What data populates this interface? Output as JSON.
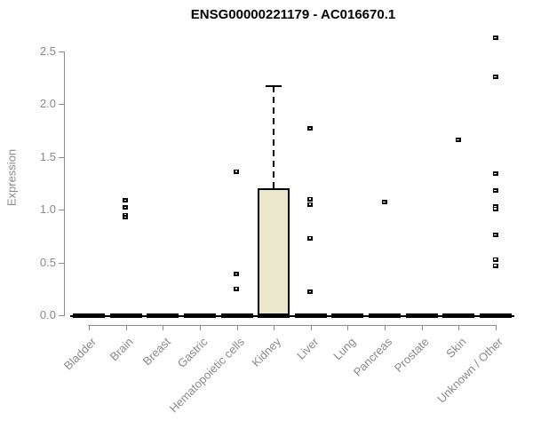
{
  "chart_data": {
    "type": "boxplot",
    "title": "ENSG00000221179 - AC016670.1",
    "xlabel": "",
    "ylabel": "Expression",
    "ylim": [
      0,
      2.5
    ],
    "yticks": [
      "0.0",
      "0.5",
      "1.0",
      "1.5",
      "2.0",
      "2.5"
    ],
    "grid": false,
    "legend": "none",
    "colors": {
      "box_fill": "#ece8cd",
      "box_border": "#000000",
      "axis": "#8c8c8c",
      "tick_text": "#8a8a8a",
      "title_text": "#000000",
      "outlier": "#000000"
    },
    "categories": [
      "Bladder",
      "Brain",
      "Breast",
      "Gastric",
      "Hematopoietic cells",
      "Kidney",
      "Liver",
      "Lung",
      "Pancreas",
      "Prostate",
      "Skin",
      "Unknown / Other"
    ],
    "groups": [
      {
        "label": "Bladder",
        "q1": 0,
        "median": 0,
        "q3": 0,
        "whisker_low": 0,
        "whisker_high": 0,
        "outliers": []
      },
      {
        "label": "Brain",
        "q1": 0,
        "median": 0,
        "q3": 0,
        "whisker_low": 0,
        "whisker_high": 0,
        "outliers": [
          1.09,
          1.02,
          0.95,
          0.93
        ]
      },
      {
        "label": "Breast",
        "q1": 0,
        "median": 0,
        "q3": 0,
        "whisker_low": 0,
        "whisker_high": 0,
        "outliers": []
      },
      {
        "label": "Gastric",
        "q1": 0,
        "median": 0,
        "q3": 0,
        "whisker_low": 0,
        "whisker_high": 0,
        "outliers": []
      },
      {
        "label": "Hematopoietic cells",
        "q1": 0,
        "median": 0,
        "q3": 0,
        "whisker_low": 0,
        "whisker_high": 0,
        "outliers": [
          1.36,
          0.39,
          0.25
        ]
      },
      {
        "label": "Kidney",
        "q1": 0,
        "median": 0,
        "q3": 1.2,
        "whisker_low": 0,
        "whisker_high": 2.17,
        "outliers": []
      },
      {
        "label": "Liver",
        "q1": 0,
        "median": 0,
        "q3": 0,
        "whisker_low": 0,
        "whisker_high": 0,
        "outliers": [
          1.77,
          1.1,
          1.05,
          0.73,
          0.22
        ]
      },
      {
        "label": "Lung",
        "q1": 0,
        "median": 0,
        "q3": 0,
        "whisker_low": 0,
        "whisker_high": 0,
        "outliers": []
      },
      {
        "label": "Pancreas",
        "q1": 0,
        "median": 0,
        "q3": 0,
        "whisker_low": 0,
        "whisker_high": 0,
        "outliers": [
          1.07
        ]
      },
      {
        "label": "Prostate",
        "q1": 0,
        "median": 0,
        "q3": 0,
        "whisker_low": 0,
        "whisker_high": 0,
        "outliers": []
      },
      {
        "label": "Skin",
        "q1": 0,
        "median": 0,
        "q3": 0,
        "whisker_low": 0,
        "whisker_high": 0,
        "outliers": [
          1.66
        ]
      },
      {
        "label": "Unknown / Other",
        "q1": 0,
        "median": 0,
        "q3": 0,
        "whisker_low": 0,
        "whisker_high": 0,
        "outliers": [
          2.63,
          2.26,
          1.34,
          1.18,
          1.03,
          1.01,
          0.76,
          0.53,
          0.47
        ]
      }
    ]
  }
}
